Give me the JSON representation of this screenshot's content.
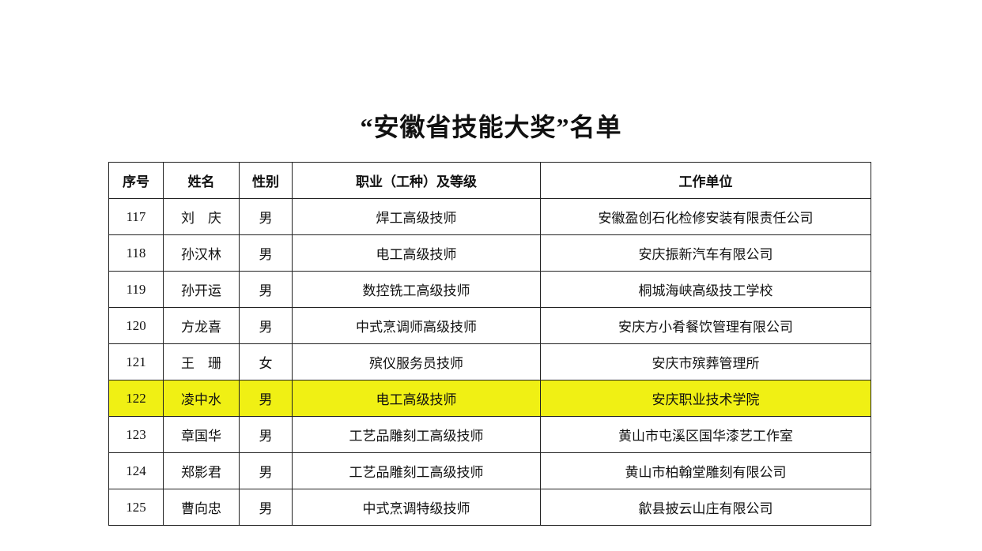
{
  "title": "“安徽省技能大奖”名单",
  "highlight_color": "#f0f014",
  "table": {
    "headers": [
      "序号",
      "姓名",
      "性别",
      "职业（工种）及等级",
      "工作单位"
    ],
    "rows": [
      [
        "117",
        "刘　庆",
        "男",
        "焊工高级技师",
        "安徽盈创石化检修安装有限责任公司"
      ],
      [
        "118",
        "孙汉林",
        "男",
        "电工高级技师",
        "安庆振新汽车有限公司"
      ],
      [
        "119",
        "孙开运",
        "男",
        "数控铣工高级技师",
        "桐城海峡高级技工学校"
      ],
      [
        "120",
        "方龙喜",
        "男",
        "中式烹调师高级技师",
        "安庆方小肴餐饮管理有限公司"
      ],
      [
        "121",
        "王　珊",
        "女",
        "殡仪服务员技师",
        "安庆市殡葬管理所"
      ],
      [
        "122",
        "凌中水",
        "男",
        "电工高级技师",
        "安庆职业技术学院"
      ],
      [
        "123",
        "章国华",
        "男",
        "工艺品雕刻工高级技师",
        "黄山市屯溪区国华漆艺工作室"
      ],
      [
        "124",
        "郑影君",
        "男",
        "工艺品雕刻工高级技师",
        "黄山市柏翰堂雕刻有限公司"
      ],
      [
        "125",
        "曹向忠",
        "男",
        "中式烹调特级技师",
        "歙县披云山庄有限公司"
      ]
    ],
    "highlighted_row": 5
  }
}
